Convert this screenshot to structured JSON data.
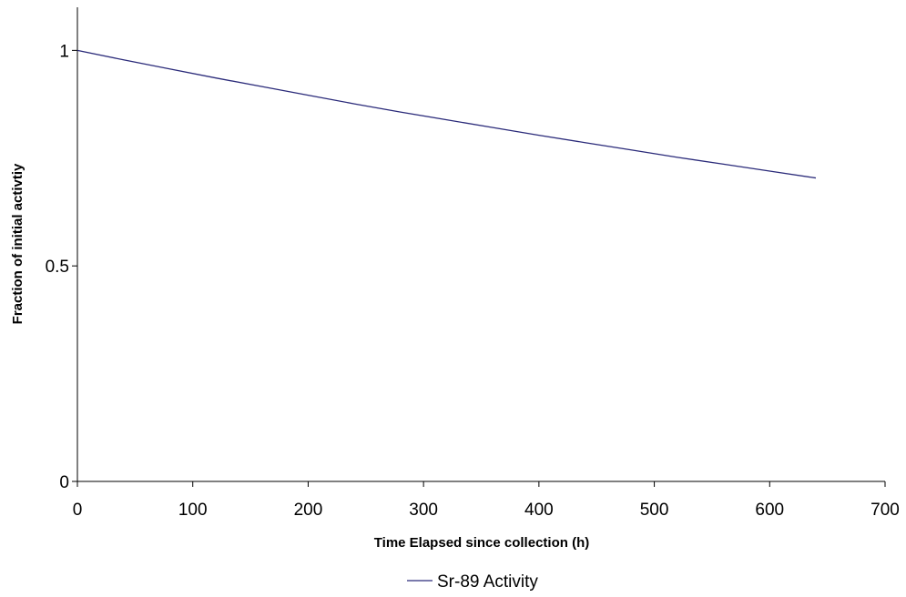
{
  "chart_data": {
    "type": "line",
    "title": "",
    "xlabel": "Time Elapsed since collection (h)",
    "ylabel": "Fraction of initial activtiy",
    "xlim": [
      0,
      700
    ],
    "ylim": [
      0,
      1.1
    ],
    "x_ticks": [
      0,
      100,
      200,
      300,
      400,
      500,
      600,
      700
    ],
    "x_tick_labels": [
      "0",
      "100",
      "200",
      "300",
      "400",
      "500",
      "600",
      "700"
    ],
    "y_ticks": [
      0,
      0.5,
      1
    ],
    "y_tick_labels": [
      "0",
      "0.5",
      "1"
    ],
    "grid": false,
    "legend_position": "bottom",
    "series": [
      {
        "name": "Sr-89 Activity",
        "color": "#2b2b7a",
        "x": [
          0,
          40,
          80,
          120,
          160,
          200,
          240,
          280,
          320,
          360,
          400,
          440,
          480,
          520,
          560,
          600,
          640
        ],
        "y": [
          1.0,
          0.978,
          0.957,
          0.936,
          0.916,
          0.896,
          0.876,
          0.857,
          0.839,
          0.821,
          0.803,
          0.786,
          0.769,
          0.752,
          0.736,
          0.72,
          0.704
        ]
      }
    ]
  }
}
